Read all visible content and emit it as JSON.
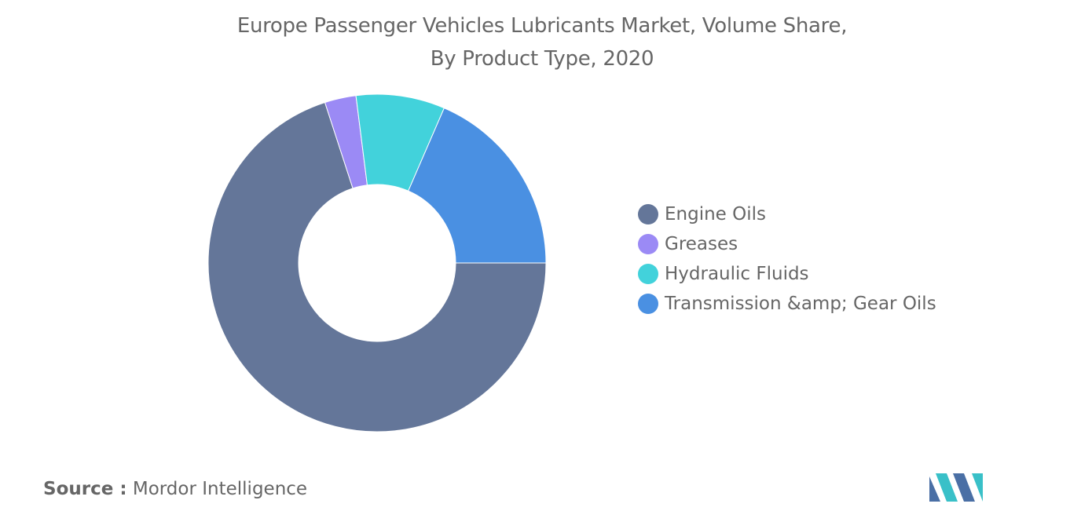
{
  "chart_data": {
    "type": "pie",
    "variant": "donut",
    "title": "Europe Passenger Vehicles Lubricants Market, Volume Share, By Product Type, 2020",
    "categories": [
      "Engine Oils",
      "Greases",
      "Hydraulic Fluids",
      "Transmission &amp; Gear Oils"
    ],
    "values": [
      70,
      3,
      8.5,
      18.5
    ],
    "colors": [
      "#647699",
      "#9b8af5",
      "#42d2db",
      "#4a90e2"
    ],
    "legend_position": "right",
    "data_labels": false
  },
  "source": {
    "label": "Source :",
    "text": "Mordor Intelligence"
  },
  "logo": {
    "icon": "mordor-intelligence-logo-icon",
    "colors": [
      "#4a6fa5",
      "#39c0c8"
    ]
  }
}
